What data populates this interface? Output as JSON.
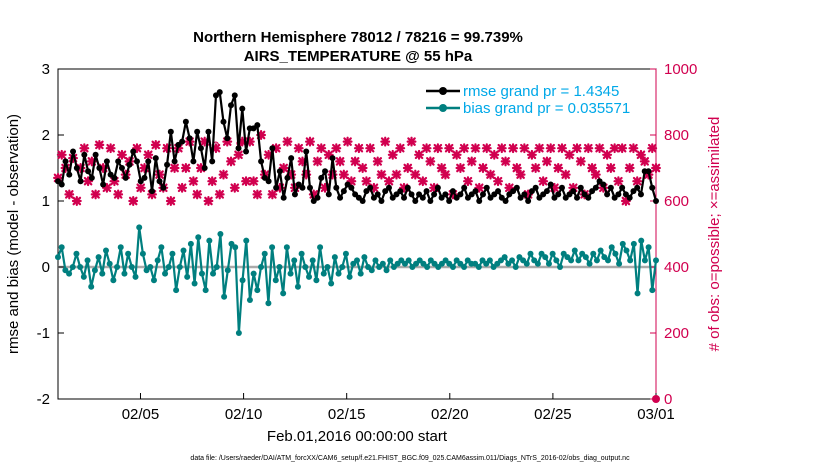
{
  "chart_data": {
    "type": "line",
    "title": "Northern Hemisphere 78012 / 78216 = 99.739%",
    "subtitle": "AIRS_TEMPERATURE @ 55 hPa",
    "xlabel": "Feb.01,2016 00:00:00 start",
    "ylabel": "rmse and bias (model - observation)",
    "ylabel_right": "# of obs: o=possible; ×=assimilated",
    "footer": "data file: /Users/raeder/DAI/ATM_forcXX/CAM6_setup/f.e21.FHIST_BGC.f09_025.CAM6assim.011/Diags_NTrS_2016-02/obs_diag_output.nc",
    "ylim": [
      -2,
      3
    ],
    "ylim_right": [
      0,
      1000
    ],
    "xlim": [
      1,
      30
    ],
    "yticks": [
      -2,
      -1,
      0,
      1,
      2,
      3
    ],
    "yticks_right": [
      0,
      200,
      400,
      600,
      800,
      1000
    ],
    "xticks": [
      {
        "x": 5,
        "label": "02/05"
      },
      {
        "x": 10,
        "label": "02/10"
      },
      {
        "x": 15,
        "label": "02/15"
      },
      {
        "x": 20,
        "label": "02/20"
      },
      {
        "x": 25,
        "label": "02/25"
      },
      {
        "x": 30,
        "label": "03/01"
      }
    ],
    "grid": false,
    "legend_position": "top-right",
    "colors": {
      "rmse": "#000000",
      "bias": "#007f7f",
      "obs": "#d1004f",
      "legend_text": "#00a8e8",
      "zero_line": "#aaaaaa"
    },
    "series": [
      {
        "name": "rmse grand pr = 1.4345",
        "values": [
          1.3,
          1.25,
          1.6,
          1.4,
          1.75,
          1.5,
          1.3,
          1.7,
          1.45,
          1.35,
          1.7,
          1.5,
          1.25,
          1.6,
          1.4,
          1.35,
          1.6,
          1.5,
          1.35,
          1.55,
          1.75,
          1.6,
          1.3,
          1.35,
          1.6,
          1.15,
          1.65,
          1.3,
          1.2,
          1.55,
          2.05,
          1.6,
          1.85,
          1.9,
          2.2,
          1.95,
          1.6,
          2.05,
          1.8,
          1.5,
          2.05,
          1.6,
          2.6,
          2.65,
          2.2,
          1.95,
          2.45,
          2.6,
          1.8,
          2.4,
          1.75,
          2.1,
          2.1,
          2.15,
          1.6,
          1.35,
          1.3,
          1.8,
          1.2,
          1.45,
          1.05,
          1.35,
          1.65,
          1.1,
          1.25,
          1.2,
          1.75,
          1.2,
          1.0,
          1.05,
          1.35,
          1.45,
          1.1,
          1.65,
          1.2,
          1.05,
          1.15,
          1.25,
          1.2,
          1.1,
          1.05,
          1.0,
          1.15,
          1.2,
          1.05,
          1.1,
          1.0,
          1.15,
          1.2,
          1.05,
          1.1,
          1.15,
          1.05,
          1.2,
          1.1,
          1.0,
          1.1,
          1.05,
          1.15,
          1.0,
          1.1,
          1.2,
          1.05,
          1.1,
          1.0,
          1.15,
          1.05,
          1.1,
          1.2,
          1.05,
          1.1,
          1.15,
          1.0,
          1.1,
          1.2,
          1.05,
          1.1,
          1.15,
          1.05,
          1.0,
          1.1,
          1.15,
          1.2,
          1.05,
          1.1,
          1.0,
          1.15,
          1.2,
          1.05,
          1.1,
          1.15,
          1.25,
          1.05,
          1.1,
          1.2,
          1.05,
          1.1,
          1.15,
          1.05,
          1.2,
          1.1,
          1.05,
          1.15,
          1.2,
          1.3,
          1.25,
          1.1,
          1.2,
          1.05,
          1.1,
          1.2,
          1.1,
          1.05,
          1.15,
          1.2,
          1.1,
          1.45,
          1.45,
          1.2,
          1.0
        ]
      },
      {
        "name": "bias grand pr = 0.035571",
        "values": [
          0.15,
          0.3,
          -0.05,
          -0.1,
          0.0,
          0.2,
          0.0,
          -0.15,
          0.1,
          -0.3,
          -0.05,
          0.15,
          -0.1,
          0.25,
          0.05,
          -0.2,
          0.0,
          0.3,
          -0.1,
          0.2,
          0.0,
          -0.15,
          0.6,
          0.2,
          -0.05,
          0.0,
          -0.2,
          0.1,
          0.3,
          -0.1,
          0.0,
          0.2,
          -0.35,
          0.0,
          0.25,
          -0.15,
          0.35,
          -0.25,
          0.45,
          -0.1,
          -0.35,
          0.4,
          -0.1,
          0.0,
          0.5,
          -0.45,
          -0.05,
          0.35,
          0.3,
          -1.0,
          -0.2,
          0.4,
          -0.5,
          -0.1,
          -0.35,
          0.0,
          0.2,
          -0.55,
          0.3,
          -0.2,
          0.0,
          -0.4,
          0.3,
          -0.1,
          0.1,
          -0.3,
          0.2,
          0.0,
          -0.15,
          0.1,
          -0.2,
          0.3,
          -0.1,
          0.0,
          -0.25,
          0.15,
          -0.1,
          0.0,
          0.2,
          -0.15,
          0.05,
          0.1,
          -0.1,
          0.15,
          0.0,
          -0.05,
          0.1,
          0.0,
          0.05,
          -0.05,
          0.1,
          0.0,
          0.05,
          0.1,
          0.05,
          0.1,
          0.0,
          0.05,
          0.1,
          0.05,
          0.0,
          0.1,
          0.05,
          0.0,
          0.05,
          0.1,
          0.05,
          0.0,
          0.1,
          0.05,
          0.0,
          0.1,
          0.05,
          0.05,
          0.0,
          0.1,
          0.05,
          0.1,
          0.0,
          0.05,
          0.1,
          0.15,
          0.05,
          0.1,
          0.0,
          0.15,
          0.1,
          0.05,
          0.2,
          0.1,
          0.05,
          0.2,
          0.15,
          0.05,
          0.2,
          0.1,
          0.0,
          0.2,
          0.15,
          0.1,
          0.25,
          0.1,
          0.2,
          0.15,
          0.05,
          0.2,
          0.1,
          0.25,
          0.15,
          0.1,
          0.3,
          0.2,
          0.05,
          0.35,
          0.25,
          0.1,
          0.35,
          -0.4,
          0.4,
          0.1,
          0.3,
          -0.35,
          0.1
        ]
      }
    ],
    "obs_series": [
      {
        "name": "possible",
        "marker": "o",
        "x": [
          8.65,
          9.8
        ],
        "y": [
          771,
          775
        ]
      },
      {
        "name": "assimilated",
        "marker": "×",
        "values": [
          670,
          740,
          700,
          620,
          730,
          600,
          700,
          760,
          660,
          720,
          620,
          770,
          700,
          640,
          760,
          660,
          620,
          740,
          680,
          720,
          600,
          760,
          640,
          700,
          740,
          620,
          770,
          680,
          640,
          760,
          600,
          700,
          760,
          640,
          700,
          780,
          660,
          620,
          700,
          780,
          600,
          660,
          760,
          620,
          680,
          780,
          720,
          640,
          740,
          780,
          660,
          780,
          660,
          620,
          800,
          680,
          740,
          620,
          760,
          640,
          700,
          780,
          680,
          640,
          760,
          720,
          680,
          780,
          620,
          720,
          760,
          640,
          740,
          680,
          760,
          720,
          680,
          780,
          660,
          720,
          760,
          700,
          660,
          760,
          640,
          720,
          680,
          780,
          660,
          740,
          680,
          760,
          640,
          700,
          780,
          680,
          740,
          660,
          760,
          720,
          640,
          760,
          700,
          680,
          760,
          620,
          740,
          700,
          760,
          660,
          720,
          760,
          640,
          700,
          760,
          680,
          740,
          660,
          760,
          720,
          640,
          760,
          700,
          680,
          760,
          620,
          740,
          700,
          760,
          660,
          720,
          760,
          640,
          700,
          760,
          680,
          740,
          640,
          760,
          720,
          620,
          760,
          700,
          680,
          760,
          640,
          740,
          700,
          760,
          660,
          760,
          600,
          700,
          760,
          660,
          740,
          720,
          680,
          760,
          700
        ]
      }
    ]
  }
}
